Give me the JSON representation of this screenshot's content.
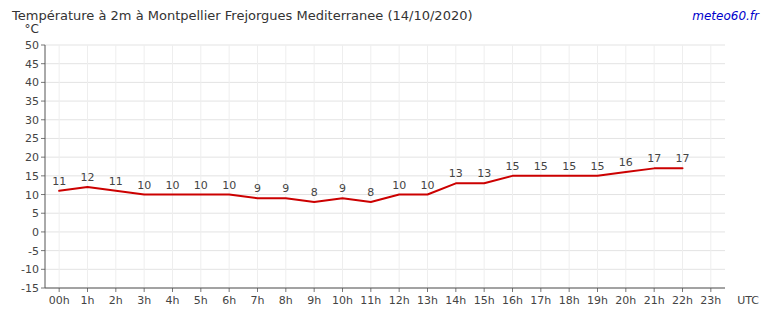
{
  "chart_data": {
    "type": "line",
    "title": "Température à 2m à Montpellier Frejorgues Mediterranee (14/10/2020)",
    "ylabel": "°C",
    "xlabel": "UTC",
    "annotations": [
      {
        "text": "meteo60.fr",
        "color": "#0000cc"
      }
    ],
    "categories": [
      "00h",
      "1h",
      "2h",
      "3h",
      "4h",
      "5h",
      "6h",
      "7h",
      "8h",
      "9h",
      "10h",
      "11h",
      "12h",
      "13h",
      "14h",
      "15h",
      "16h",
      "17h",
      "18h",
      "19h",
      "20h",
      "21h",
      "22h",
      "23h"
    ],
    "values": [
      11,
      12,
      11,
      10,
      10,
      10,
      10,
      9,
      9,
      8,
      9,
      8,
      10,
      10,
      13,
      13,
      15,
      15,
      15,
      15,
      16,
      17,
      17,
      null
    ],
    "color": "#cc0000",
    "ylim": [
      -15,
      50
    ],
    "yticks": [
      -15,
      -10,
      -5,
      0,
      5,
      10,
      15,
      20,
      25,
      30,
      35,
      40,
      45,
      50
    ],
    "grid": true,
    "data_labels": true
  }
}
